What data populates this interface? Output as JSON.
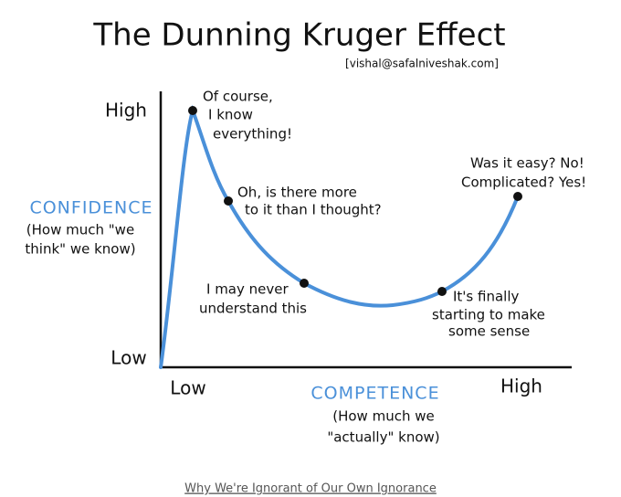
{
  "header": {
    "title": "The Dunning Kruger Effect",
    "credit": "[vishal@safalniveshak.com]"
  },
  "y_axis": {
    "high": "High",
    "low": "Low",
    "label": "CONFIDENCE",
    "sublabel": [
      "(How much \"we",
      "think\" we know)"
    ]
  },
  "x_axis": {
    "low": "Low",
    "high": "High",
    "label": "COMPETENCE",
    "sublabel": [
      "(How much we",
      "\"actually\" know)"
    ]
  },
  "annotations": [
    {
      "lines": [
        "Of course,",
        "I know",
        "everything!"
      ]
    },
    {
      "lines": [
        "Oh, is there more",
        "to it than I thought?"
      ]
    },
    {
      "lines": [
        "I may never",
        "understand this"
      ]
    },
    {
      "lines": [
        "It's finally",
        "starting to make",
        "some sense"
      ]
    },
    {
      "lines": [
        "Was it easy? No!",
        "Complicated? Yes!"
      ]
    }
  ],
  "caption": "Why We're Ignorant of Our Own Ignorance"
}
